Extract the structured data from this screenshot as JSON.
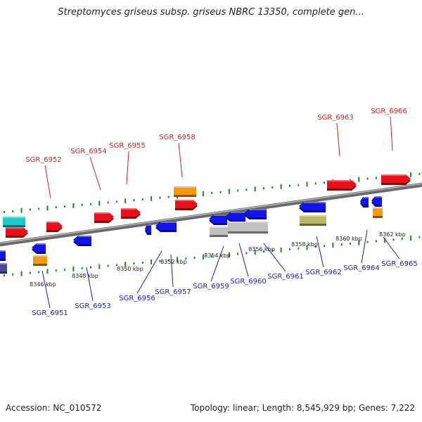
{
  "title": "Streptomyces griseus subsp. griseus NBRC 13350, complete gen...",
  "footer": {
    "accession": "Accession: NC_010572",
    "topology": "Topology: linear; Length: 8,545,929 bp; Genes: 7,222"
  },
  "colors": {
    "red": "#e8101a",
    "blue": "#1414e6",
    "orange": "#f59a10",
    "cyan": "#20c8cc",
    "silver": "#c0c0c0",
    "olive": "#bdb56a",
    "purple": "#4e4a9a",
    "tick_green": "#1a8a1a",
    "label_red": "#d42020",
    "label_blue": "#1a1ac4"
  },
  "scale_labels": [
    "8346 kbp",
    "8348 kbp",
    "8350 kbp",
    "8352 kbp",
    "8354 kbp",
    "8356 kbp",
    "8358 kbp",
    "8360 kbp",
    "8362 kbp"
  ],
  "top_genes": [
    "SGR_6952",
    "SGR_6954",
    "SGR_6955",
    "SGR_6958",
    "SGR_6963",
    "SGR_6966"
  ],
  "bottom_genes": [
    "SGR_6951",
    "SGR_6953",
    "SGR_6956",
    "SGR_6957",
    "SGR_6959",
    "SGR_6960",
    "SGR_6961",
    "SGR_6962",
    "SGR_6964",
    "SGR_6965"
  ]
}
